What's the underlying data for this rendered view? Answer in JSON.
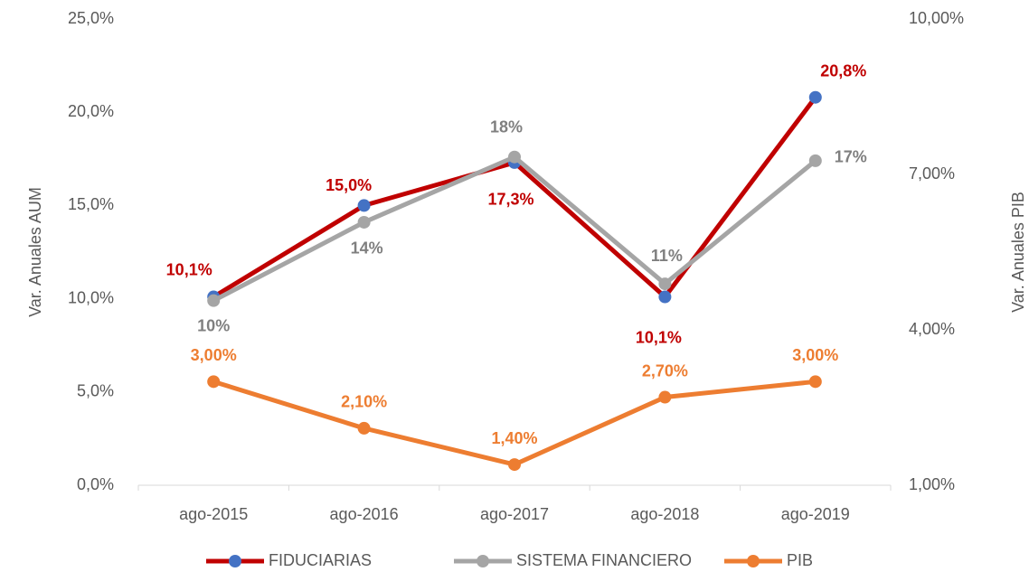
{
  "chart_data": {
    "type": "line",
    "y_label": "Var. Anuales AUM",
    "y2_label": "Var. Anuales PIB",
    "categories": [
      "ago-2015",
      "ago-2016",
      "ago-2017",
      "ago-2018",
      "ago-2019"
    ],
    "series": [
      {
        "name": "FIDUCIARIAS",
        "color": "#c00000",
        "marker_color": "#4472c4",
        "label_color": "#c00000",
        "values": [
          10.1,
          15.0,
          17.3,
          10.1,
          20.8
        ],
        "value_labels": [
          "10,1%",
          "15,0%",
          "17,3%",
          "10,1%",
          "20,8%"
        ]
      },
      {
        "name": "SISTEMA FINANCIERO",
        "color": "#a5a5a5",
        "marker_color": "#a5a5a5",
        "label_color": "#7f7f7f",
        "values": [
          9.9,
          14.1,
          17.6,
          10.8,
          17.4
        ],
        "value_labels": [
          "10%",
          "14%",
          "18%",
          "11%",
          "17%"
        ]
      },
      {
        "name": "PIB",
        "color": "#ed7d31",
        "marker_color": "#ed7d31",
        "label_color": "#ed7d31",
        "axis": "y2",
        "values": [
          3.0,
          2.1,
          1.4,
          2.7,
          3.0
        ],
        "value_labels": [
          "3,00%",
          "2,10%",
          "1,40%",
          "2,70%",
          "3,00%"
        ]
      }
    ],
    "ylim": [
      0,
      25
    ],
    "yticks": [
      {
        "value": 0,
        "label": "0,0%"
      },
      {
        "value": 5,
        "label": "5,0%"
      },
      {
        "value": 10,
        "label": "10,0%"
      },
      {
        "value": 15,
        "label": "15,0%"
      },
      {
        "value": 20,
        "label": "20,0%"
      },
      {
        "value": 25,
        "label": "25,0%"
      }
    ],
    "y2lim": [
      1,
      10
    ],
    "y2ticks": [
      {
        "value": 1,
        "label": "1,00%"
      },
      {
        "value": 4,
        "label": "4,00%"
      },
      {
        "value": 7,
        "label": "7,00%"
      },
      {
        "value": 10,
        "label": "10,00%"
      }
    ],
    "legend": "bottom"
  }
}
